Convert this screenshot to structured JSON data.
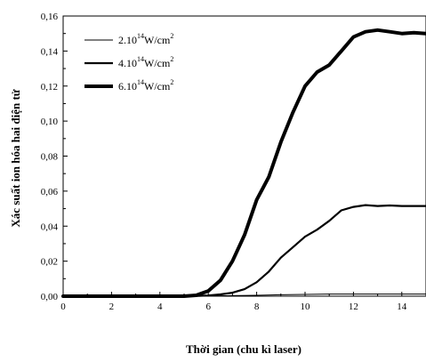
{
  "chart_data": {
    "type": "line",
    "title": "",
    "xlabel": "Thời gian (chu kì laser)",
    "ylabel": "Xác suất ion hóa hai điện tử",
    "xlim": [
      0,
      15
    ],
    "ylim": [
      0,
      0.16
    ],
    "x_ticks": [
      0,
      2,
      4,
      6,
      8,
      10,
      12,
      14
    ],
    "x_tick_labels": [
      "0",
      "2",
      "4",
      "6",
      "8",
      "10",
      "12",
      "14"
    ],
    "y_ticks": [
      0,
      0.02,
      0.04,
      0.06,
      0.08,
      0.1,
      0.12,
      0.14,
      0.16
    ],
    "y_tick_labels": [
      "0,00",
      "0,02",
      "0,04",
      "0,06",
      "0,08",
      "0,10",
      "0,12",
      "0,14",
      "0,16"
    ],
    "grid": false,
    "legend_position": "top-left",
    "series": [
      {
        "legend_prefix": "2.10",
        "legend_exponent": "14",
        "legend_unit": "W/cm",
        "legend_unit_exponent": "2",
        "weight": "thin",
        "x": [
          0,
          5,
          6,
          7,
          8,
          9,
          10,
          11,
          12,
          13,
          14,
          15
        ],
        "y": [
          0,
          0,
          0.0001,
          0.0003,
          0.0005,
          0.0008,
          0.001,
          0.0012,
          0.0012,
          0.0012,
          0.0012,
          0.0012
        ]
      },
      {
        "legend_prefix": "4.10",
        "legend_exponent": "14",
        "legend_unit": "W/cm",
        "legend_unit_exponent": "2",
        "weight": "medium",
        "x": [
          0,
          5,
          5.5,
          6,
          6.5,
          7,
          7.5,
          8,
          8.5,
          9,
          9.5,
          10,
          10.5,
          11,
          11.5,
          12,
          12.5,
          13,
          13.5,
          14,
          14.5,
          15
        ],
        "y": [
          0,
          0,
          0.0001,
          0.0004,
          0.001,
          0.002,
          0.004,
          0.008,
          0.014,
          0.022,
          0.028,
          0.034,
          0.038,
          0.043,
          0.049,
          0.051,
          0.052,
          0.0515,
          0.0518,
          0.0515,
          0.0515,
          0.0515
        ]
      },
      {
        "legend_prefix": "6.10",
        "legend_exponent": "14",
        "legend_unit": "W/cm",
        "legend_unit_exponent": "2",
        "weight": "thick",
        "x": [
          0,
          5,
          5.5,
          6,
          6.5,
          7,
          7.5,
          8,
          8.5,
          9,
          9.5,
          10,
          10.5,
          11,
          11.5,
          12,
          12.5,
          13,
          13.5,
          14,
          14.5,
          15
        ],
        "y": [
          0,
          0,
          0.0005,
          0.003,
          0.009,
          0.02,
          0.035,
          0.055,
          0.068,
          0.088,
          0.105,
          0.12,
          0.128,
          0.132,
          0.14,
          0.148,
          0.151,
          0.152,
          0.151,
          0.15,
          0.1505,
          0.15
        ]
      }
    ]
  }
}
